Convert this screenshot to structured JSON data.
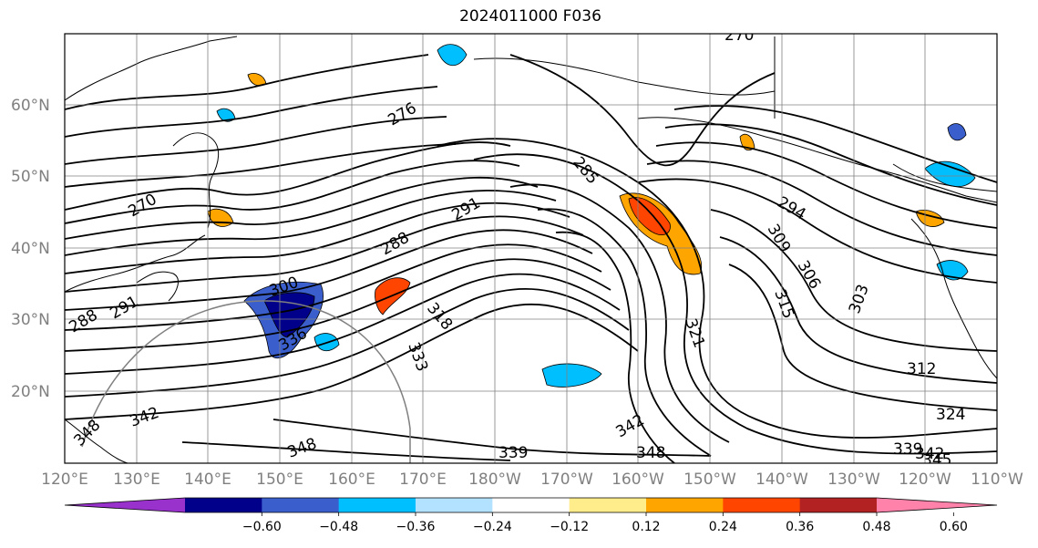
{
  "title": "2024011000 F036",
  "map": {
    "lon_labels": [
      "120°E",
      "130°E",
      "140°E",
      "150°E",
      "160°E",
      "170°E",
      "180°W",
      "170°W",
      "160°W",
      "150°W",
      "140°W",
      "130°W",
      "120°W",
      "110°W"
    ],
    "lat_labels": [
      "20°N",
      "30°N",
      "40°N",
      "50°N",
      "60°N"
    ],
    "grid": true,
    "contour_labels": [
      "270",
      "270",
      "276",
      "285",
      "291",
      "294",
      "309",
      "306",
      "303",
      "315",
      "312",
      "318",
      "321",
      "324",
      "333",
      "339",
      "342",
      "348",
      "339",
      "342",
      "345",
      "288",
      "288",
      "291",
      "300",
      "336",
      "342",
      "348",
      "348"
    ]
  },
  "colorbar": {
    "ticks": [
      "−0.60",
      "−0.48",
      "−0.36",
      "−0.24",
      "−0.12",
      "0.12",
      "0.24",
      "0.36",
      "0.48",
      "0.60"
    ],
    "colors": [
      "#9932cc",
      "#00008b",
      "#3a5fcd",
      "#00bfff",
      "#b2e2ff",
      "#ffffff",
      "#ffec8b",
      "#ffa500",
      "#ff4500",
      "#b22222",
      "#ff82ab"
    ],
    "extend": "both"
  }
}
